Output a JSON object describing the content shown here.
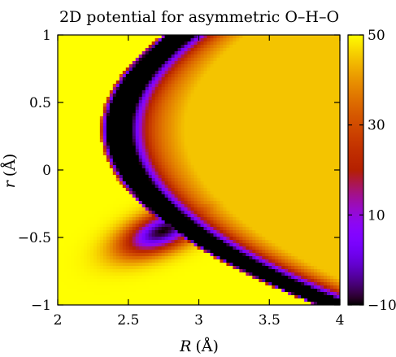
{
  "chart_data": {
    "type": "heatmap",
    "title": "2D potential for asymmetric O–H–O",
    "xlabel": "R",
    "xlabel_unit": "(Å)",
    "ylabel": "r",
    "ylabel_unit": "(Å)",
    "xlim": [
      2,
      4
    ],
    "ylim": [
      -1,
      1
    ],
    "x_ticks": [
      2,
      2.5,
      3,
      3.5,
      4
    ],
    "x_tick_labels": [
      "2",
      "2.5",
      "3",
      "3.5",
      "4"
    ],
    "y_ticks": [
      -1,
      -0.5,
      0,
      0.5,
      1
    ],
    "y_tick_labels": [
      "−1",
      "−0.5",
      "0",
      "0.5",
      "1"
    ],
    "colorbar": {
      "range": [
        -10,
        50
      ],
      "ticks": [
        -10,
        10,
        30,
        50
      ],
      "tick_labels": [
        "−10",
        "10",
        "30",
        "50"
      ],
      "colormap": "gnuplot",
      "clipped_above": 50
    },
    "surface": {
      "minimum": {
        "R": 2.75,
        "r": -0.45,
        "value": -10
      },
      "region_right_of_boundary_max": {
        "R": 4.0,
        "r": 0.3,
        "value": 45
      },
      "high_region_value": 50
    }
  }
}
